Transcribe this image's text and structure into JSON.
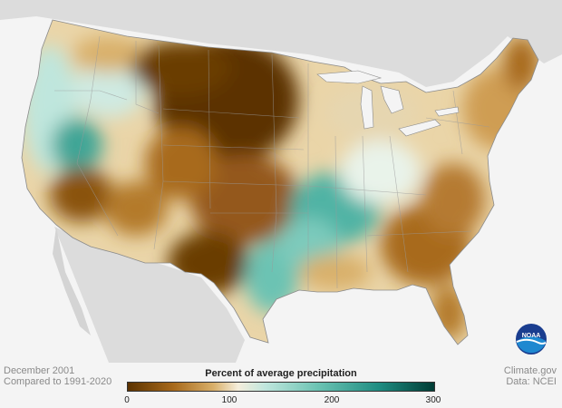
{
  "map": {
    "date": "December 2001",
    "comparison": "Compared to 1991-2020",
    "credit": "Climate.gov",
    "source": "Data: NCEI",
    "logo_text": "NOAA"
  },
  "legend": {
    "title": "Percent of average precipitation",
    "ticks": [
      "0",
      "100",
      "200",
      "300"
    ],
    "colors": {
      "dry_dark": "#5c3300",
      "dry": "#a86a1c",
      "dry_light": "#d9b06a",
      "near_avg": "#f5eedc",
      "wet_light": "#bfe6dd",
      "wet": "#6cc3b3",
      "wet_dark": "#0f6e66",
      "wet_darkest": "#003c35"
    }
  },
  "regions": [
    {
      "name": "northern-plains",
      "category": "very-dry"
    },
    {
      "name": "central-plains",
      "category": "dry"
    },
    {
      "name": "southwest",
      "category": "dry"
    },
    {
      "name": "texas-west",
      "category": "very-dry"
    },
    {
      "name": "lower-mississippi-valley",
      "category": "wet"
    },
    {
      "name": "east-texas",
      "category": "wet"
    },
    {
      "name": "pacific-coast",
      "category": "wet-light"
    },
    {
      "name": "nevada",
      "category": "wet"
    },
    {
      "name": "southeast",
      "category": "dry"
    },
    {
      "name": "northeast",
      "category": "dry-light"
    },
    {
      "name": "ohio-valley",
      "category": "near-average"
    },
    {
      "name": "great-lakes",
      "category": "near-average"
    }
  ]
}
